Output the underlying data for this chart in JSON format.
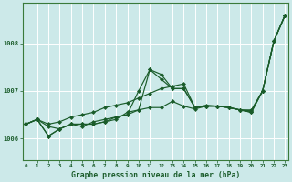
{
  "title": "Graphe pression niveau de la mer (hPa)",
  "background_color": "#cce9e9",
  "grid_color": "#ffffff",
  "line_color": "#1a5c2a",
  "x_ticks": [
    0,
    1,
    2,
    3,
    4,
    5,
    6,
    7,
    8,
    9,
    10,
    11,
    12,
    13,
    14,
    15,
    16,
    17,
    18,
    19,
    20,
    21,
    22,
    23
  ],
  "y_ticks": [
    1006,
    1007,
    1008
  ],
  "ylim": [
    1005.55,
    1008.85
  ],
  "xlim": [
    -0.3,
    23.3
  ],
  "series": [
    [
      1006.3,
      1006.4,
      1006.3,
      1006.35,
      1006.45,
      1006.5,
      1006.55,
      1006.65,
      1006.7,
      1006.75,
      1006.85,
      1006.95,
      1007.05,
      1007.1,
      1007.15,
      1006.65,
      1006.7,
      1006.68,
      1006.65,
      1006.6,
      1006.58,
      1007.0,
      1008.05,
      1008.6
    ],
    [
      1006.3,
      1006.4,
      1006.25,
      1006.2,
      1006.3,
      1006.25,
      1006.35,
      1006.4,
      1006.45,
      1006.5,
      1007.0,
      1007.45,
      1007.35,
      1007.05,
      1007.05,
      1006.65,
      1006.68,
      1006.68,
      1006.65,
      1006.6,
      1006.55,
      1007.0,
      1008.05,
      1008.6
    ],
    [
      1006.3,
      1006.4,
      1006.05,
      1006.2,
      1006.3,
      1006.3,
      1006.3,
      1006.35,
      1006.4,
      1006.55,
      1006.6,
      1007.45,
      1007.25,
      1007.05,
      1007.05,
      1006.65,
      1006.68,
      1006.68,
      1006.65,
      1006.6,
      1006.55,
      1007.0,
      1008.05,
      1008.6
    ],
    [
      1006.3,
      1006.4,
      1006.05,
      1006.2,
      1006.3,
      1006.3,
      1006.3,
      1006.35,
      1006.45,
      1006.5,
      1006.6,
      1006.65,
      1006.65,
      1006.78,
      1006.68,
      1006.62,
      1006.68,
      1006.68,
      1006.65,
      1006.6,
      1006.6,
      1007.0,
      1008.05,
      1008.6
    ]
  ]
}
